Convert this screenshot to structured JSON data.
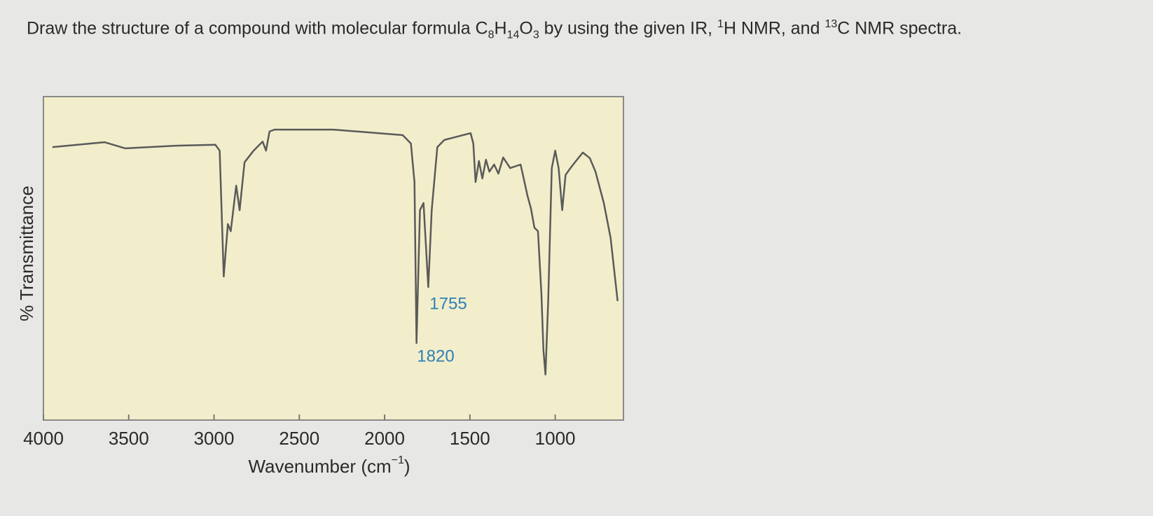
{
  "question": [
    "Draw the structure of a compound with molecular formula C",
    "8",
    "H",
    "14",
    "O",
    "3",
    " by using the given IR, ",
    "1",
    "H NMR, and ",
    "13",
    "C NMR spectra."
  ],
  "chart_data": {
    "type": "line",
    "x_label": [
      "Wavenumber (cm",
      "−1",
      ")"
    ],
    "y_label": "% Transmittance",
    "xlim": [
      4000,
      600
    ],
    "ylim": [
      0,
      100
    ],
    "xticks": [
      4000,
      3500,
      3000,
      2500,
      2000,
      1500,
      1000
    ],
    "color": "#5a5a5a",
    "background": "#f2eecb",
    "x": [
      3947,
      3642,
      3520,
      3236,
      2992,
      2967,
      2943,
      2919,
      2902,
      2870,
      2850,
      2821,
      2768,
      2715,
      2695,
      2675,
      2646,
      2301,
      1894,
      1846,
      1825,
      1813,
      1793,
      1772,
      1744,
      1724,
      1691,
      1650,
      1496,
      1480,
      1467,
      1447,
      1427,
      1406,
      1386,
      1358,
      1333,
      1305,
      1264,
      1203,
      1162,
      1142,
      1122,
      1101,
      1081,
      1069,
      1057,
      1041,
      1020,
      1000,
      980,
      959,
      939,
      911,
      878,
      838,
      797,
      764,
      715,
      675,
      634
    ],
    "values": [
      84.4,
      85.9,
      84,
      84.8,
      85.1,
      83.3,
      44.4,
      60.6,
      58.4,
      72.5,
      64.9,
      79.7,
      83.3,
      86.1,
      83.3,
      89.2,
      89.8,
      89.8,
      88.1,
      85.5,
      73.6,
      23.8,
      64.9,
      67.1,
      41.1,
      64.9,
      84.4,
      86.6,
      88.7,
      85.5,
      73.6,
      80.1,
      74.7,
      80.5,
      76.8,
      79,
      76.2,
      81.2,
      77.9,
      79,
      69.3,
      65.4,
      59.5,
      58.4,
      39,
      21.6,
      14.1,
      36.8,
      77.9,
      83.3,
      77.9,
      64.9,
      75.8,
      77.9,
      80.1,
      82.7,
      81,
      76.8,
      67.1,
      56.3,
      36.8
    ],
    "annotations": [
      {
        "text": "1755",
        "color": "#2f7fb5"
      },
      {
        "text": "1820",
        "color": "#2f7fb5"
      }
    ]
  }
}
